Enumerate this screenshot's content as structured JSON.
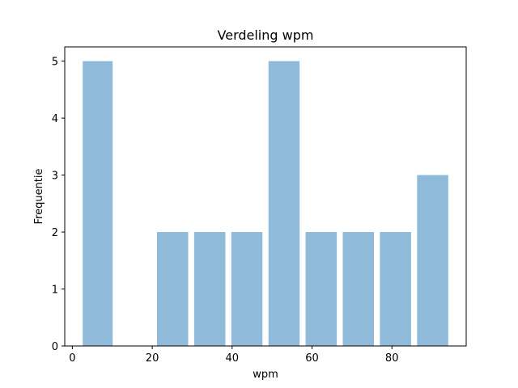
{
  "chart_data": {
    "type": "bar",
    "title": "Verdeling wpm",
    "xlabel": "wpm",
    "ylabel": "Frequentie",
    "bins": [
      {
        "start": 2.6,
        "end": 10.1,
        "count": 5
      },
      {
        "start": 11.5,
        "end": 19.0,
        "count": 0
      },
      {
        "start": 21.2,
        "end": 29.0,
        "count": 2
      },
      {
        "start": 30.5,
        "end": 38.3,
        "count": 2
      },
      {
        "start": 39.8,
        "end": 47.6,
        "count": 2
      },
      {
        "start": 49.1,
        "end": 56.9,
        "count": 5
      },
      {
        "start": 58.4,
        "end": 66.2,
        "count": 2
      },
      {
        "start": 67.7,
        "end": 75.5,
        "count": 2
      },
      {
        "start": 77.0,
        "end": 84.8,
        "count": 2
      },
      {
        "start": 86.3,
        "end": 94.1,
        "count": 3
      }
    ],
    "xlim": [
      -1.9,
      98.6
    ],
    "ylim": [
      0,
      5.25
    ],
    "xticks": [
      0,
      20,
      40,
      60,
      80
    ],
    "yticks": [
      0,
      1,
      2,
      3,
      4,
      5
    ],
    "bar_color": "#8fbada",
    "grid": false,
    "legend": "none"
  }
}
